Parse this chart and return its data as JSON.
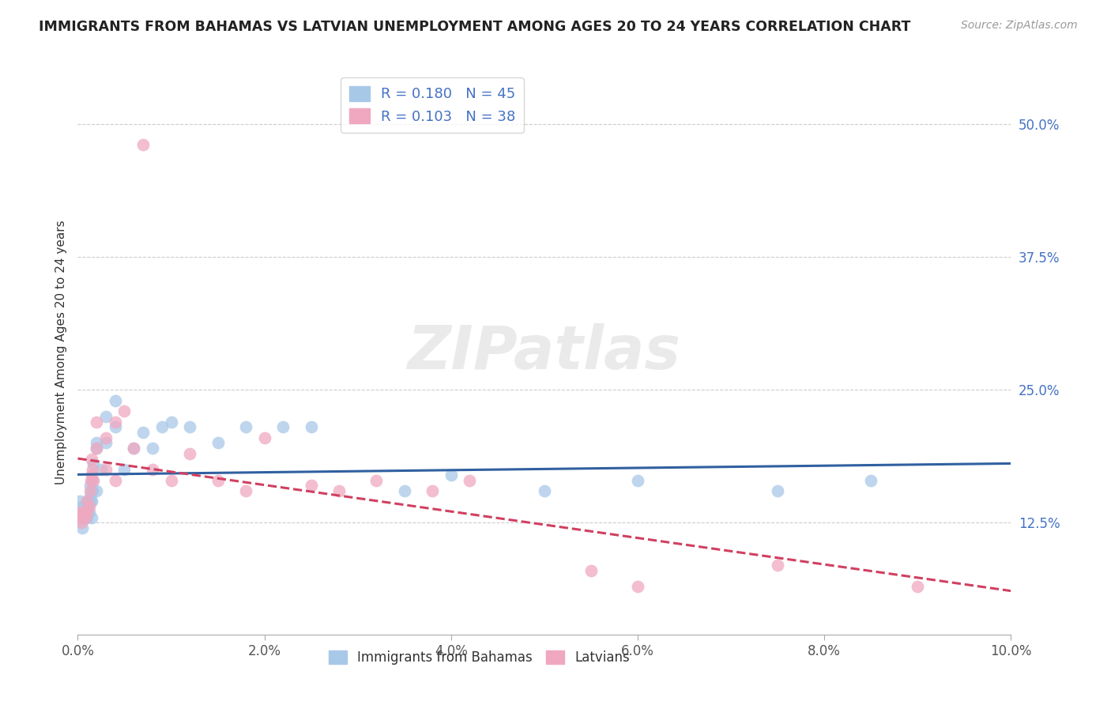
{
  "title": "IMMIGRANTS FROM BAHAMAS VS LATVIAN UNEMPLOYMENT AMONG AGES 20 TO 24 YEARS CORRELATION CHART",
  "source": "Source: ZipAtlas.com",
  "ylabel": "Unemployment Among Ages 20 to 24 years",
  "xlim": [
    0.0,
    0.1
  ],
  "ylim": [
    0.02,
    0.55
  ],
  "yticks": [
    0.125,
    0.25,
    0.375,
    0.5
  ],
  "ytick_labels": [
    "12.5%",
    "25.0%",
    "37.5%",
    "50.0%"
  ],
  "xticks": [
    0.0,
    0.02,
    0.04,
    0.06,
    0.08,
    0.1
  ],
  "xtick_labels": [
    "0.0%",
    "2.0%",
    "4.0%",
    "6.0%",
    "8.0%",
    "10.0%"
  ],
  "blue_R": 0.18,
  "blue_N": 45,
  "pink_R": 0.103,
  "pink_N": 38,
  "blue_color": "#a8c8e8",
  "pink_color": "#f0a8c0",
  "blue_line_color": "#3060a0",
  "pink_line_color": "#d04060",
  "legend_label_blue": "Immigrants from Bahamas",
  "legend_label_pink": "Latvians",
  "watermark": "ZIPatlas",
  "blue_scatter_x": [
    0.0002,
    0.0003,
    0.0005,
    0.0005,
    0.0006,
    0.0008,
    0.001,
    0.001,
    0.001,
    0.0012,
    0.0012,
    0.0013,
    0.0013,
    0.0014,
    0.0015,
    0.0015,
    0.0015,
    0.0016,
    0.0016,
    0.0017,
    0.002,
    0.002,
    0.002,
    0.0025,
    0.003,
    0.003,
    0.004,
    0.004,
    0.005,
    0.006,
    0.007,
    0.008,
    0.009,
    0.01,
    0.012,
    0.015,
    0.018,
    0.022,
    0.025,
    0.035,
    0.04,
    0.05,
    0.06,
    0.075,
    0.085
  ],
  "blue_scatter_y": [
    0.145,
    0.13,
    0.14,
    0.12,
    0.135,
    0.13,
    0.145,
    0.14,
    0.13,
    0.145,
    0.135,
    0.15,
    0.16,
    0.145,
    0.155,
    0.145,
    0.13,
    0.155,
    0.165,
    0.18,
    0.195,
    0.155,
    0.2,
    0.175,
    0.225,
    0.2,
    0.24,
    0.215,
    0.175,
    0.195,
    0.21,
    0.195,
    0.215,
    0.22,
    0.215,
    0.2,
    0.215,
    0.215,
    0.215,
    0.155,
    0.17,
    0.155,
    0.165,
    0.155,
    0.165
  ],
  "pink_scatter_x": [
    0.0002,
    0.0004,
    0.0005,
    0.0006,
    0.0008,
    0.001,
    0.001,
    0.0012,
    0.0013,
    0.0014,
    0.0015,
    0.0015,
    0.0016,
    0.0017,
    0.002,
    0.002,
    0.003,
    0.003,
    0.004,
    0.004,
    0.005,
    0.006,
    0.007,
    0.008,
    0.01,
    0.012,
    0.015,
    0.018,
    0.02,
    0.025,
    0.028,
    0.032,
    0.038,
    0.042,
    0.055,
    0.06,
    0.075,
    0.09
  ],
  "pink_scatter_y": [
    0.135,
    0.125,
    0.13,
    0.135,
    0.13,
    0.145,
    0.135,
    0.14,
    0.155,
    0.165,
    0.17,
    0.185,
    0.175,
    0.165,
    0.195,
    0.22,
    0.205,
    0.175,
    0.165,
    0.22,
    0.23,
    0.195,
    0.48,
    0.175,
    0.165,
    0.19,
    0.165,
    0.155,
    0.205,
    0.16,
    0.155,
    0.165,
    0.155,
    0.165,
    0.08,
    0.065,
    0.085,
    0.065
  ]
}
